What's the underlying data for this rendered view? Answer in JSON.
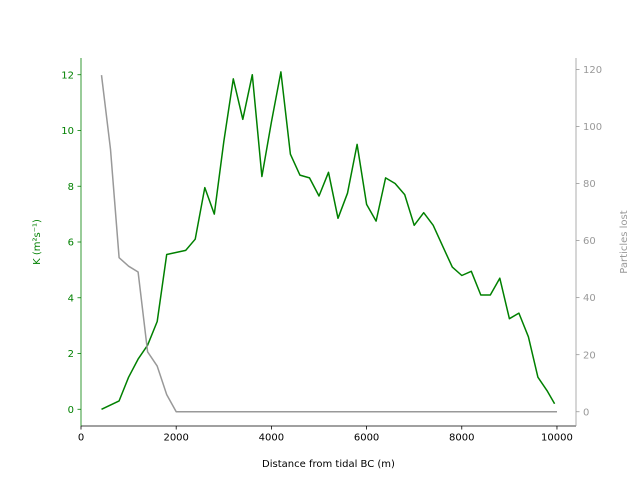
{
  "chart_data": {
    "type": "line",
    "xlabel": "Distance from tidal BC (m)",
    "ylabel_left": "K (m²s⁻¹)",
    "ylabel_right": "Particles lost",
    "xlim": [
      0,
      10400
    ],
    "ylim_left": [
      -0.6,
      12.6
    ],
    "ylim_right": [
      -5,
      124
    ],
    "x_ticks": [
      0,
      2000,
      4000,
      6000,
      8000,
      10000
    ],
    "y_left_ticks": [
      0,
      2,
      4,
      6,
      8,
      10,
      12
    ],
    "y_right_ticks": [
      0,
      20,
      40,
      60,
      80,
      100,
      120
    ],
    "grid": false,
    "colors": {
      "left": "#008000",
      "right": "#999999",
      "axis": "#000000"
    },
    "series": [
      {
        "axis": "left",
        "x": [
          430,
          800,
          1000,
          1200,
          1400,
          1600,
          1800,
          2200,
          2400,
          2600,
          2800,
          3000,
          3200,
          3400,
          3600,
          3800,
          4000,
          4200,
          4400,
          4600,
          4800,
          5000,
          5200,
          5400,
          5600,
          5800,
          6000,
          6200,
          6400,
          6600,
          6800,
          7000,
          7200,
          7400,
          7600,
          7800,
          8000,
          8200,
          8400,
          8600,
          8800,
          9000,
          9200,
          9400,
          9600,
          9800,
          9950
        ],
        "y": [
          0.0,
          0.3,
          1.15,
          1.8,
          2.3,
          3.15,
          5.55,
          5.7,
          6.1,
          7.95,
          7.0,
          9.6,
          11.85,
          10.4,
          12.0,
          8.35,
          10.3,
          12.1,
          9.15,
          8.4,
          8.3,
          7.65,
          8.5,
          6.85,
          7.75,
          9.5,
          7.35,
          6.75,
          8.3,
          8.1,
          7.7,
          6.6,
          7.05,
          6.6,
          5.85,
          5.1,
          4.8,
          4.95,
          4.1,
          4.1,
          4.7,
          3.25,
          3.45,
          2.6,
          1.15,
          0.65,
          0.2
        ]
      },
      {
        "axis": "right",
        "x": [
          430,
          620,
          800,
          1000,
          1200,
          1400,
          1600,
          1800,
          2000,
          10000
        ],
        "y": [
          118,
          92,
          54,
          51,
          49,
          21,
          16,
          6,
          0,
          0
        ]
      }
    ]
  }
}
